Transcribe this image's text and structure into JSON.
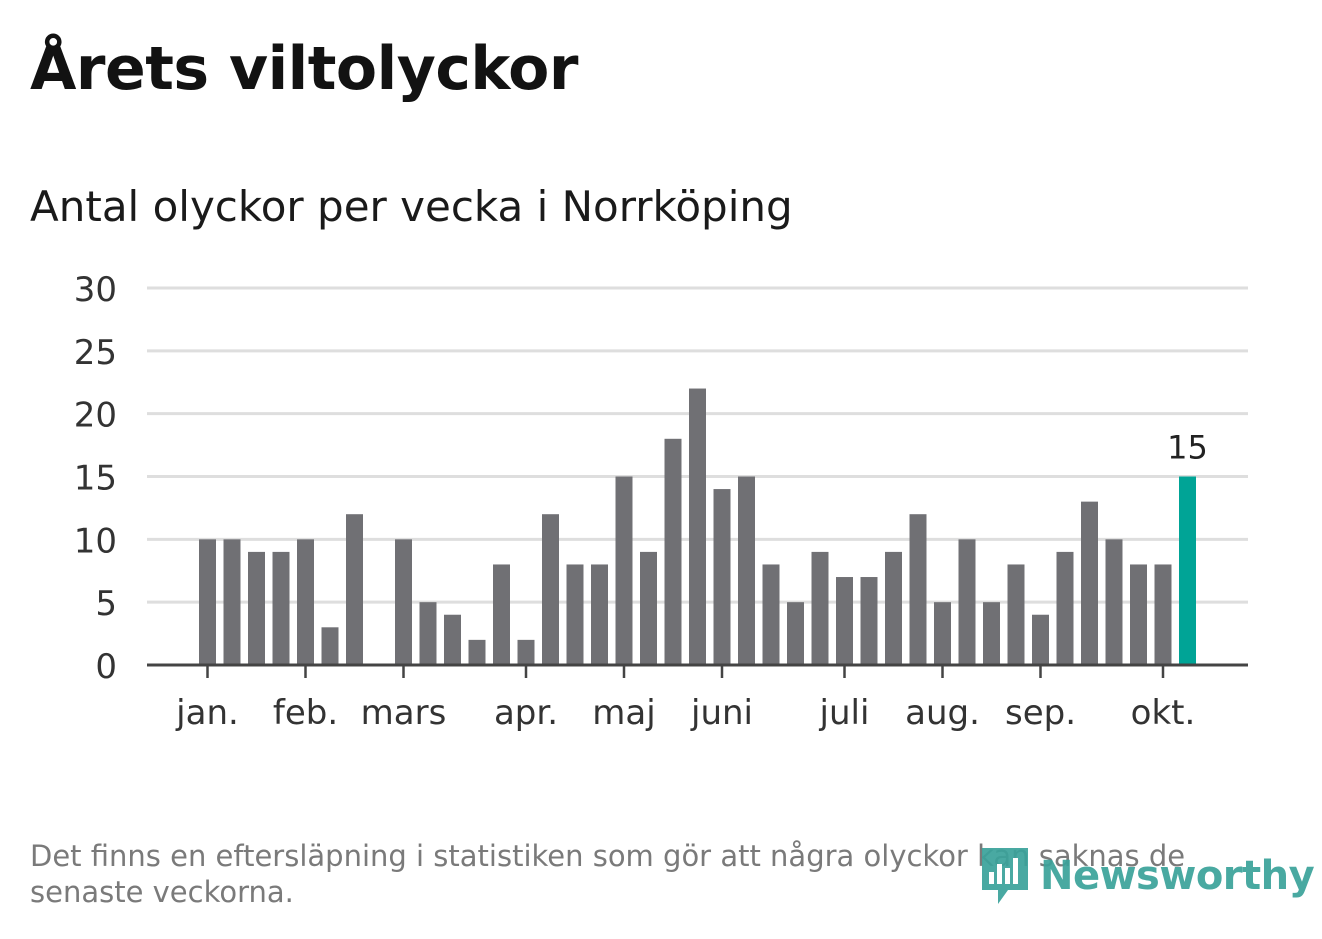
{
  "header": {
    "title": "Årets viltolyckor",
    "subtitle": "Antal olyckor per vecka i Norrköping"
  },
  "footnote": "Det finns en eftersläpning i statistiken som gör att några olyckor kan saknas de senaste veckorna.",
  "logo": {
    "text": "Newsworthy"
  },
  "colors": {
    "bar": "#707074",
    "highlight": "#00a496",
    "grid": "#dedede",
    "axis": "#444444",
    "logo": "#3aa29a"
  },
  "chart_data": {
    "type": "bar",
    "title": "Antal olyckor per vecka i Norrköping",
    "xlabel": "",
    "ylabel": "",
    "ylim": [
      0,
      30
    ],
    "yticks": [
      0,
      5,
      10,
      15,
      20,
      25,
      30
    ],
    "grid": true,
    "values": [
      10,
      10,
      9,
      9,
      10,
      3,
      12,
      0,
      10,
      5,
      4,
      2,
      8,
      2,
      12,
      8,
      8,
      15,
      9,
      18,
      22,
      14,
      15,
      8,
      5,
      9,
      7,
      7,
      9,
      12,
      5,
      10,
      5,
      8,
      4,
      9,
      13,
      10,
      8,
      8,
      15
    ],
    "highlight_index": 40,
    "highlight_label": "15",
    "month_ticks": [
      {
        "label": "jan.",
        "week": 0
      },
      {
        "label": "feb.",
        "week": 4
      },
      {
        "label": "mars",
        "week": 8
      },
      {
        "label": "apr.",
        "week": 13
      },
      {
        "label": "maj",
        "week": 17
      },
      {
        "label": "juni",
        "week": 21
      },
      {
        "label": "juli",
        "week": 26
      },
      {
        "label": "aug.",
        "week": 30
      },
      {
        "label": "sep.",
        "week": 34
      },
      {
        "label": "okt.",
        "week": 39
      }
    ]
  }
}
